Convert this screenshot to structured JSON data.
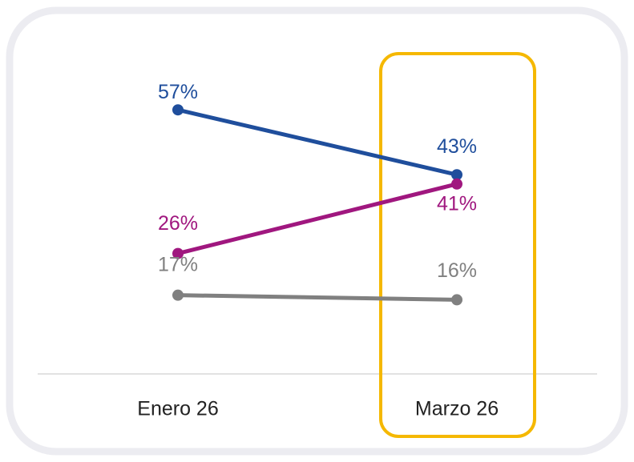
{
  "chart_data": {
    "type": "line",
    "categories": [
      "Enero 26",
      "Marzo 26"
    ],
    "ylim": [
      0,
      70
    ],
    "series": [
      {
        "color": "#1f4e9c",
        "values": [
          57,
          43
        ],
        "value_labels": [
          "57%",
          "43%"
        ]
      },
      {
        "color": "#a0177f",
        "values": [
          26,
          41
        ],
        "value_labels": [
          "26%",
          "41%"
        ]
      },
      {
        "color": "#808080",
        "values": [
          17,
          16
        ],
        "value_labels": [
          "17%",
          "16%"
        ]
      }
    ]
  }
}
